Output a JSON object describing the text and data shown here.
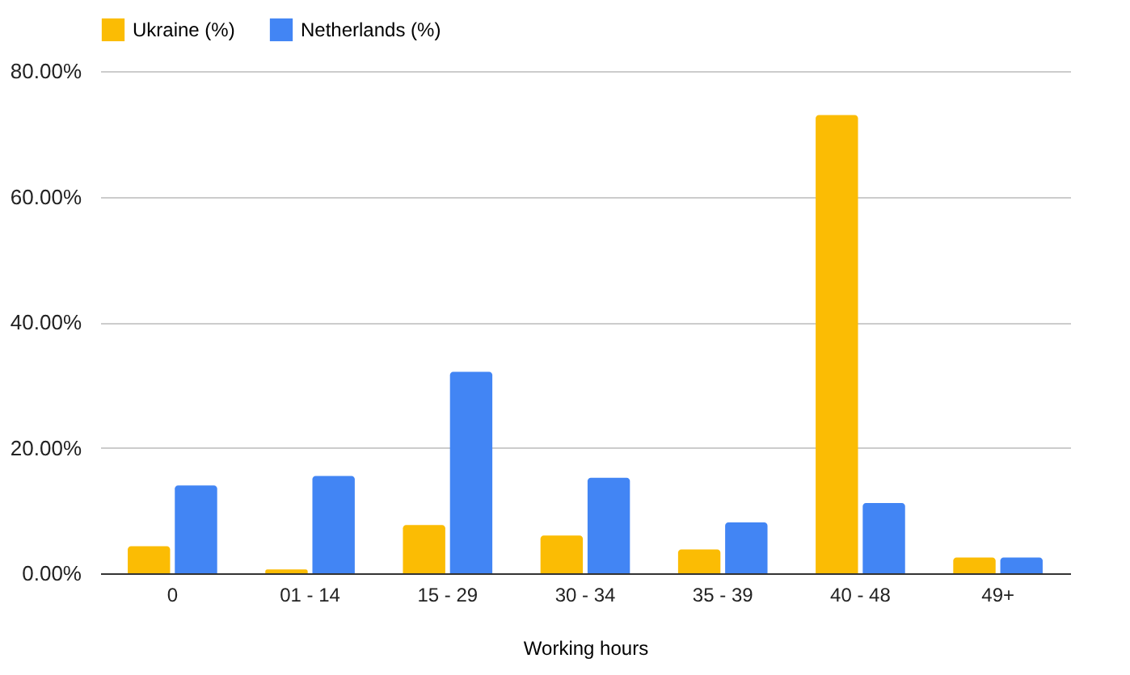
{
  "chart_data": {
    "type": "bar",
    "xlabel": "Working hours",
    "categories": [
      "0",
      "01 - 14",
      "15 - 29",
      "30 - 34",
      "35 - 39",
      "40 - 48",
      "49+"
    ],
    "series": [
      {
        "name": "Ukraine (%)",
        "color": "#fbbc04",
        "values": [
          4.3,
          0.6,
          7.7,
          6.0,
          3.8,
          73.0,
          2.5
        ]
      },
      {
        "name": "Netherlands (%)",
        "color": "#4285f4",
        "values": [
          14.0,
          15.5,
          32.1,
          15.2,
          8.1,
          11.2,
          2.5
        ]
      }
    ],
    "ylim": [
      0,
      80
    ],
    "yticks": [
      {
        "value": 0,
        "label": "0.00%"
      },
      {
        "value": 20,
        "label": "20.00%"
      },
      {
        "value": 40,
        "label": "40.00%"
      },
      {
        "value": 60,
        "label": "60.00%"
      },
      {
        "value": 80,
        "label": "80.00%"
      }
    ],
    "grid": "y",
    "legend": "top"
  }
}
